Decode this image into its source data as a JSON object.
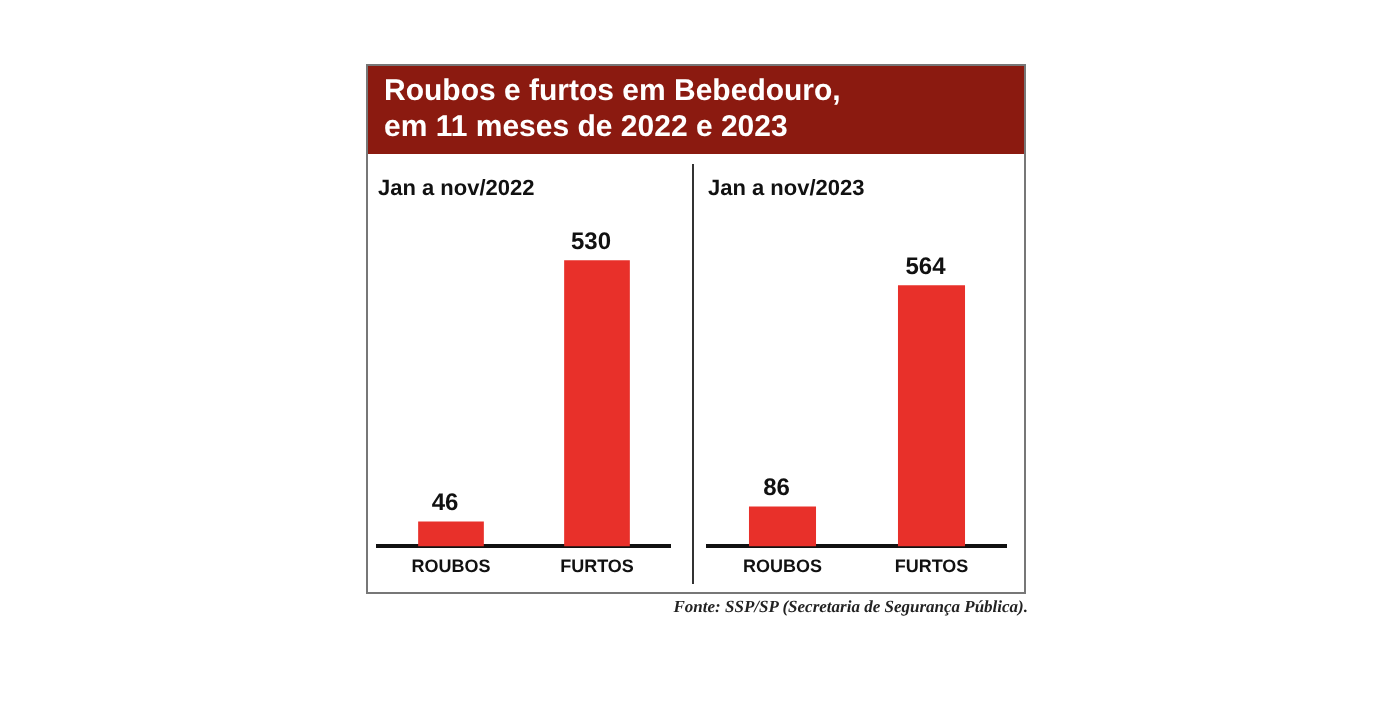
{
  "chart_data": [
    {
      "type": "bar",
      "title": "Roubos e furtos em Bebedouro, em 11 meses de 2022 e 2023",
      "subtitle": "Jan a nov/2022",
      "categories": [
        "ROUBOS",
        "FURTOS"
      ],
      "values": [
        46,
        530
      ],
      "color": "#e8302a",
      "data_labels": true,
      "grid": false,
      "legend": false
    },
    {
      "type": "bar",
      "subtitle": "Jan a nov/2023",
      "categories": [
        "ROUBOS",
        "FURTOS"
      ],
      "values": [
        86,
        564
      ],
      "color": "#e8302a",
      "data_labels": true,
      "grid": false,
      "legend": false,
      "annotations": [
        "Fonte: SSP/SP (Secretaria de Segurança Pública)."
      ]
    }
  ]
}
